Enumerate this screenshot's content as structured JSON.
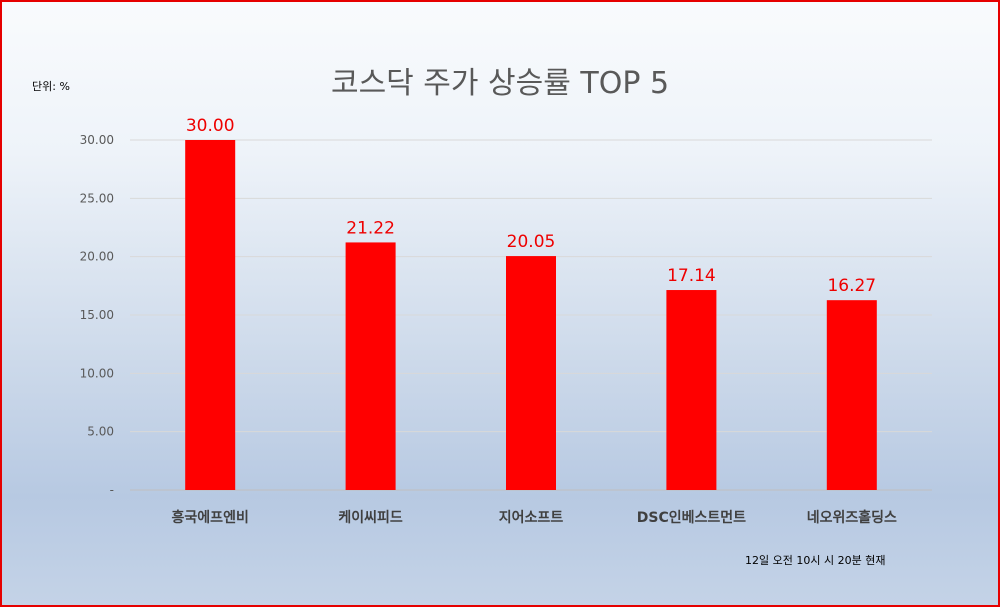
{
  "header": {
    "title": "코스닥 주가 상승률 TOP 5",
    "unit_label": "단위: %",
    "footnote": "12일 오전 10시 시 20분 현재"
  },
  "colors": {
    "bar": "#ff0000",
    "data_label": "#ee0000",
    "frame": "#e60000"
  },
  "chart_data": {
    "type": "bar",
    "title": "코스닥 주가 상승률 TOP 5",
    "categories": [
      "흥국에프엔비",
      "케이씨피드",
      "지어소프트",
      "DSC인베스트먼트",
      "네오위즈홀딩스"
    ],
    "values": [
      30.0,
      21.22,
      20.05,
      17.14,
      16.27
    ],
    "value_labels": [
      "30.00",
      "21.22",
      "20.05",
      "17.14",
      "16.27"
    ],
    "y_ticks": [
      {
        "value": 0,
        "label": "-"
      },
      {
        "value": 5,
        "label": "5.00"
      },
      {
        "value": 10,
        "label": "10.00"
      },
      {
        "value": 15,
        "label": "15.00"
      },
      {
        "value": 20,
        "label": "20.00"
      },
      {
        "value": 25,
        "label": "25.00"
      },
      {
        "value": 30,
        "label": "30.00"
      }
    ],
    "ylim": [
      0,
      30
    ],
    "xlabel": "",
    "ylabel": "",
    "grid": true,
    "legend": "none"
  }
}
